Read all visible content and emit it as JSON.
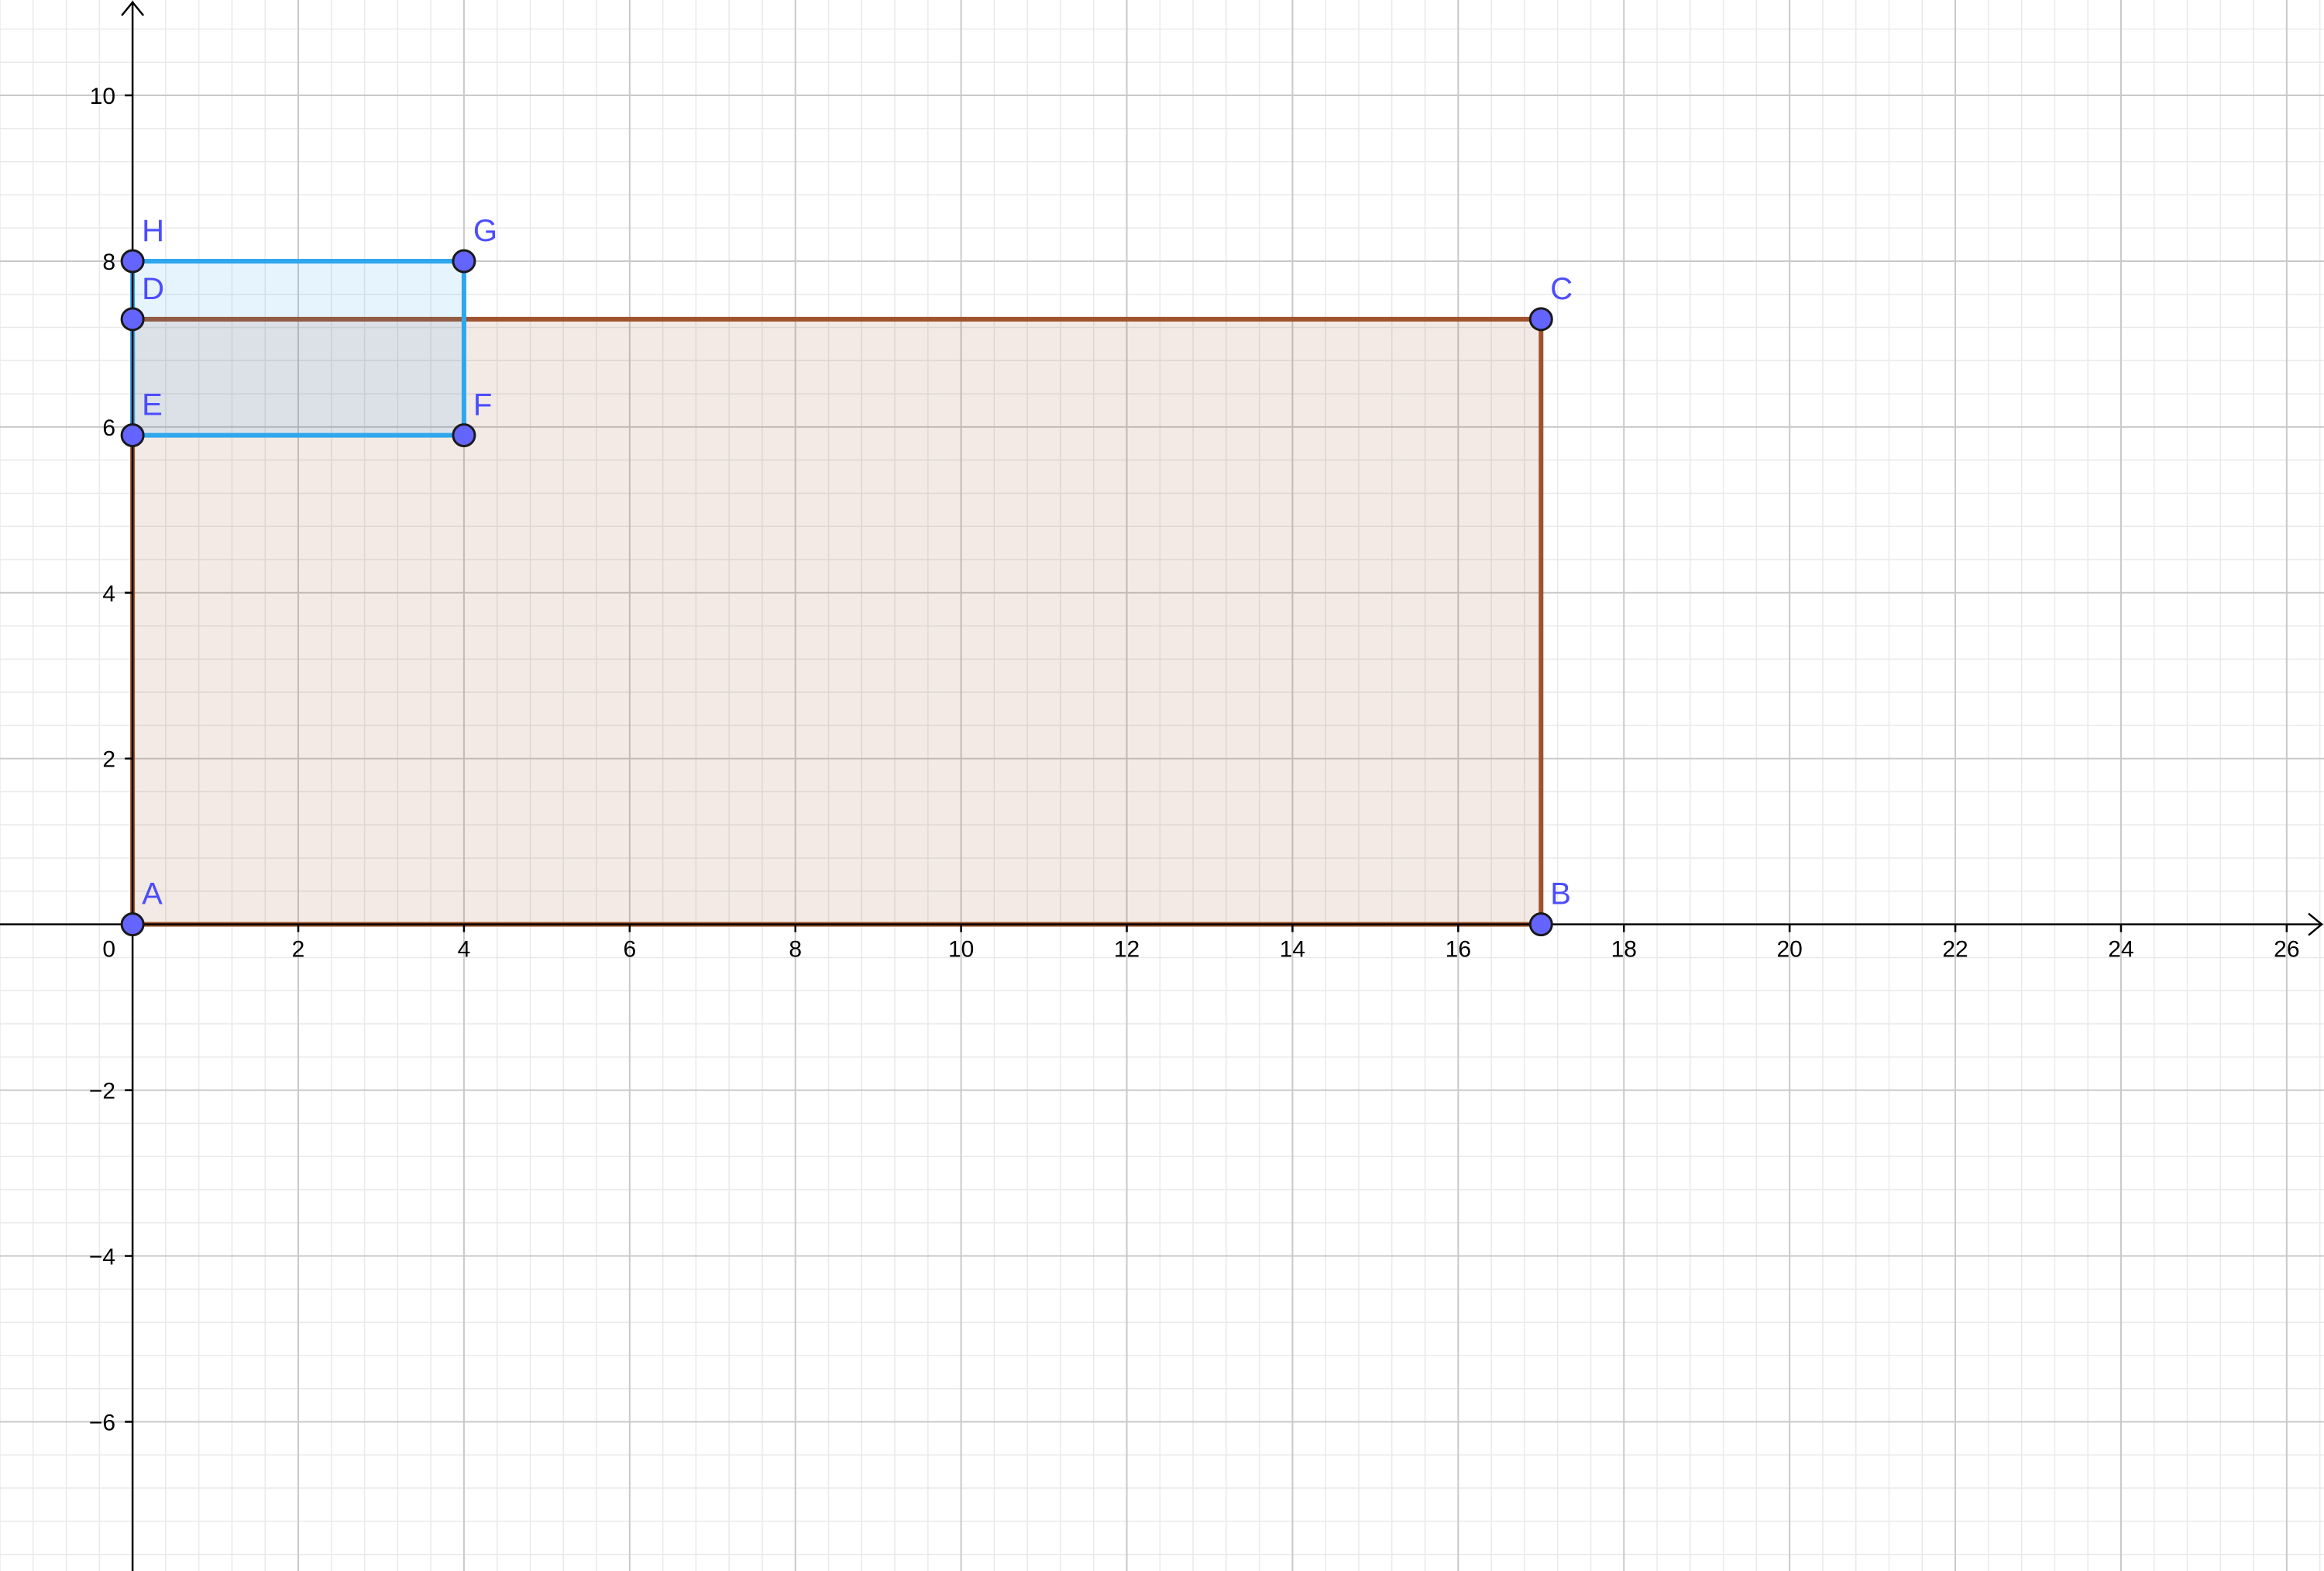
{
  "view": {
    "x_range": [
      -1.6,
      26.45
    ],
    "y_range": [
      -7.8,
      11.15
    ],
    "minor_grid_step": 0.4,
    "major_grid_step": 2,
    "axis_arrows": true
  },
  "axes": {
    "x_ticks": [
      "0",
      "2",
      "4",
      "6",
      "8",
      "10",
      "12",
      "14",
      "16",
      "18",
      "20",
      "22",
      "24",
      "26"
    ],
    "x_tick_values": [
      0,
      2,
      4,
      6,
      8,
      10,
      12,
      14,
      16,
      18,
      20,
      22,
      24,
      26
    ],
    "y_ticks": [
      "−6",
      "−4",
      "−2",
      "2",
      "4",
      "6",
      "8",
      "10"
    ],
    "y_tick_values": [
      -6,
      -4,
      -2,
      2,
      4,
      6,
      8,
      10
    ]
  },
  "colors": {
    "major_grid": "#c9c9c9",
    "minor_grid": "#e9e9e9",
    "axis": "#000000",
    "point_fill": "#6464ff",
    "point_stroke": "#1a1a1a",
    "point_label": "#4c4cff"
  },
  "polygons": [
    {
      "name": "rectangle-abcd",
      "vertices": [
        "A",
        "B",
        "C",
        "D"
      ],
      "stroke": "#a0522d",
      "fill": "#a0522d",
      "fill_opacity": 0.12
    },
    {
      "name": "rectangle-efgh",
      "vertices": [
        "E",
        "F",
        "G",
        "H"
      ],
      "stroke": "#2ea7ee",
      "fill": "#2ea7ee",
      "fill_opacity": 0.12
    }
  ],
  "points": [
    {
      "label": "A",
      "x": 0,
      "y": 0
    },
    {
      "label": "B",
      "x": 17,
      "y": 0
    },
    {
      "label": "C",
      "x": 17,
      "y": 7.3
    },
    {
      "label": "D",
      "x": 0,
      "y": 7.3
    },
    {
      "label": "E",
      "x": 0,
      "y": 5.9
    },
    {
      "label": "F",
      "x": 4,
      "y": 5.9
    },
    {
      "label": "G",
      "x": 4,
      "y": 8
    },
    {
      "label": "H",
      "x": 0,
      "y": 8
    }
  ]
}
